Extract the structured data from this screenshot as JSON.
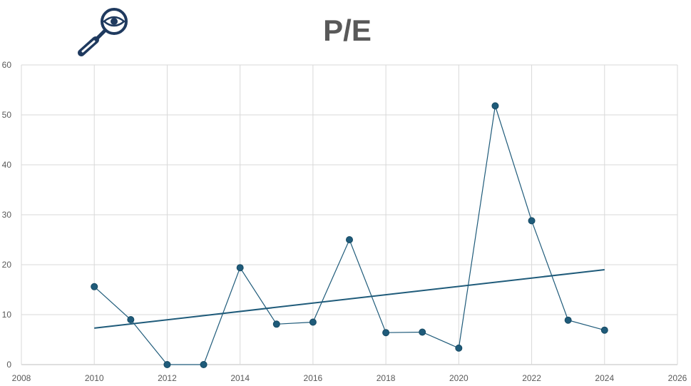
{
  "chart_data": {
    "type": "scatter",
    "title": "P/E",
    "icon": "magnifier-eye-icon",
    "xlabel": "",
    "ylabel": "",
    "xlim": [
      2008,
      2026
    ],
    "ylim": [
      0,
      60
    ],
    "x_ticks": [
      2008,
      2010,
      2012,
      2014,
      2016,
      2018,
      2020,
      2022,
      2024,
      2026
    ],
    "y_ticks": [
      0,
      10,
      20,
      30,
      40,
      50,
      60
    ],
    "grid": true,
    "legend": "none",
    "series": [
      {
        "x": [
          2010,
          2011,
          2012,
          2013,
          2014,
          2015,
          2016,
          2017,
          2018,
          2019,
          2020,
          2021,
          2022,
          2023,
          2024
        ],
        "y": [
          15.6,
          9.0,
          0.0,
          0.0,
          19.4,
          8.1,
          8.5,
          25.0,
          6.4,
          6.5,
          3.3,
          51.8,
          28.8,
          8.9,
          6.9
        ],
        "style": "line-with-markers"
      }
    ],
    "trendline": {
      "type": "linear",
      "x": [
        2010,
        2024
      ],
      "y": [
        7.3,
        19.0
      ]
    },
    "colors": {
      "series": "#1f5b7a",
      "grid": "#d9d9d9",
      "text": "#595959"
    }
  }
}
